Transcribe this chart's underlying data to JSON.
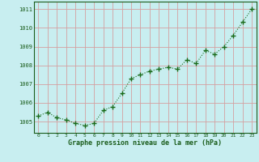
{
  "x": [
    0,
    1,
    2,
    3,
    4,
    5,
    6,
    7,
    8,
    9,
    10,
    11,
    12,
    13,
    14,
    15,
    16,
    17,
    18,
    19,
    20,
    21,
    22,
    23
  ],
  "y": [
    1005.3,
    1005.5,
    1005.2,
    1005.1,
    1004.9,
    1004.8,
    1004.9,
    1005.6,
    1005.8,
    1006.5,
    1007.3,
    1007.5,
    1007.7,
    1007.8,
    1007.9,
    1007.8,
    1008.3,
    1008.1,
    1008.8,
    1008.6,
    1009.0,
    1009.6,
    1010.3,
    1011.0
  ],
  "xlabel": "Graphe pression niveau de la mer (hPa)",
  "ylim": [
    1004.4,
    1011.4
  ],
  "yticks": [
    1005,
    1006,
    1007,
    1008,
    1009,
    1010,
    1011
  ],
  "xticks": [
    0,
    1,
    2,
    3,
    4,
    5,
    6,
    7,
    8,
    9,
    10,
    11,
    12,
    13,
    14,
    15,
    16,
    17,
    18,
    19,
    20,
    21,
    22,
    23
  ],
  "line_color": "#1a6b1a",
  "marker_color": "#1a6b1a",
  "bg_color": "#c8eef0",
  "grid_color": "#d4a0a0",
  "plot_bg": "#c8eef0",
  "xlabel_color": "#1a5c1a",
  "tick_color": "#1a5c1a",
  "axis_color": "#1a5c1a"
}
